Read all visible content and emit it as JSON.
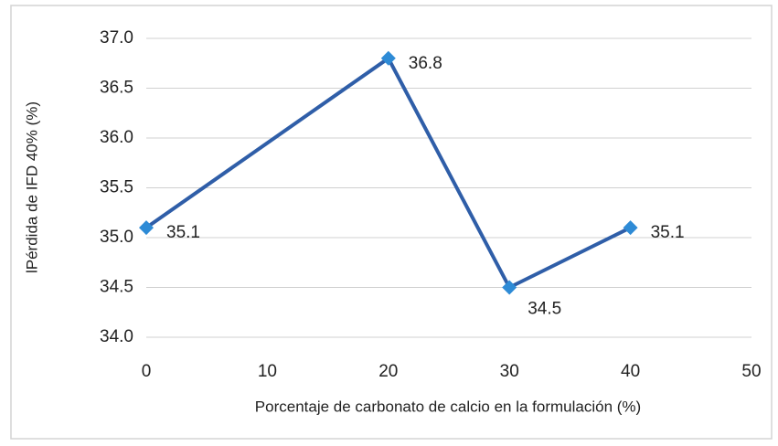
{
  "chart_data": {
    "type": "line",
    "x_label": "Porcentaje de carbonato de calcio en la formulación (%)",
    "y_label": "lPérdida de IFD 40% (%)",
    "x": [
      0,
      20,
      30,
      40
    ],
    "series": [
      {
        "name": "Pérdida de IFD 40%",
        "color": "#2f5ea8",
        "marker_color": "#2e8bd6",
        "values": [
          35.1,
          36.8,
          34.5,
          35.1
        ]
      }
    ],
    "xlim": [
      0,
      50
    ],
    "xticks": [
      0,
      10,
      20,
      30,
      40,
      50
    ],
    "ylim": [
      34,
      37
    ],
    "yticks": [
      {
        "value": 34,
        "label": "34.0"
      },
      34.5,
      {
        "value": 35,
        "label": "35.0"
      },
      35.5,
      {
        "value": 36,
        "label": "36.0"
      },
      36.5,
      {
        "value": 37,
        "label": "37.0"
      }
    ],
    "grid": true
  }
}
